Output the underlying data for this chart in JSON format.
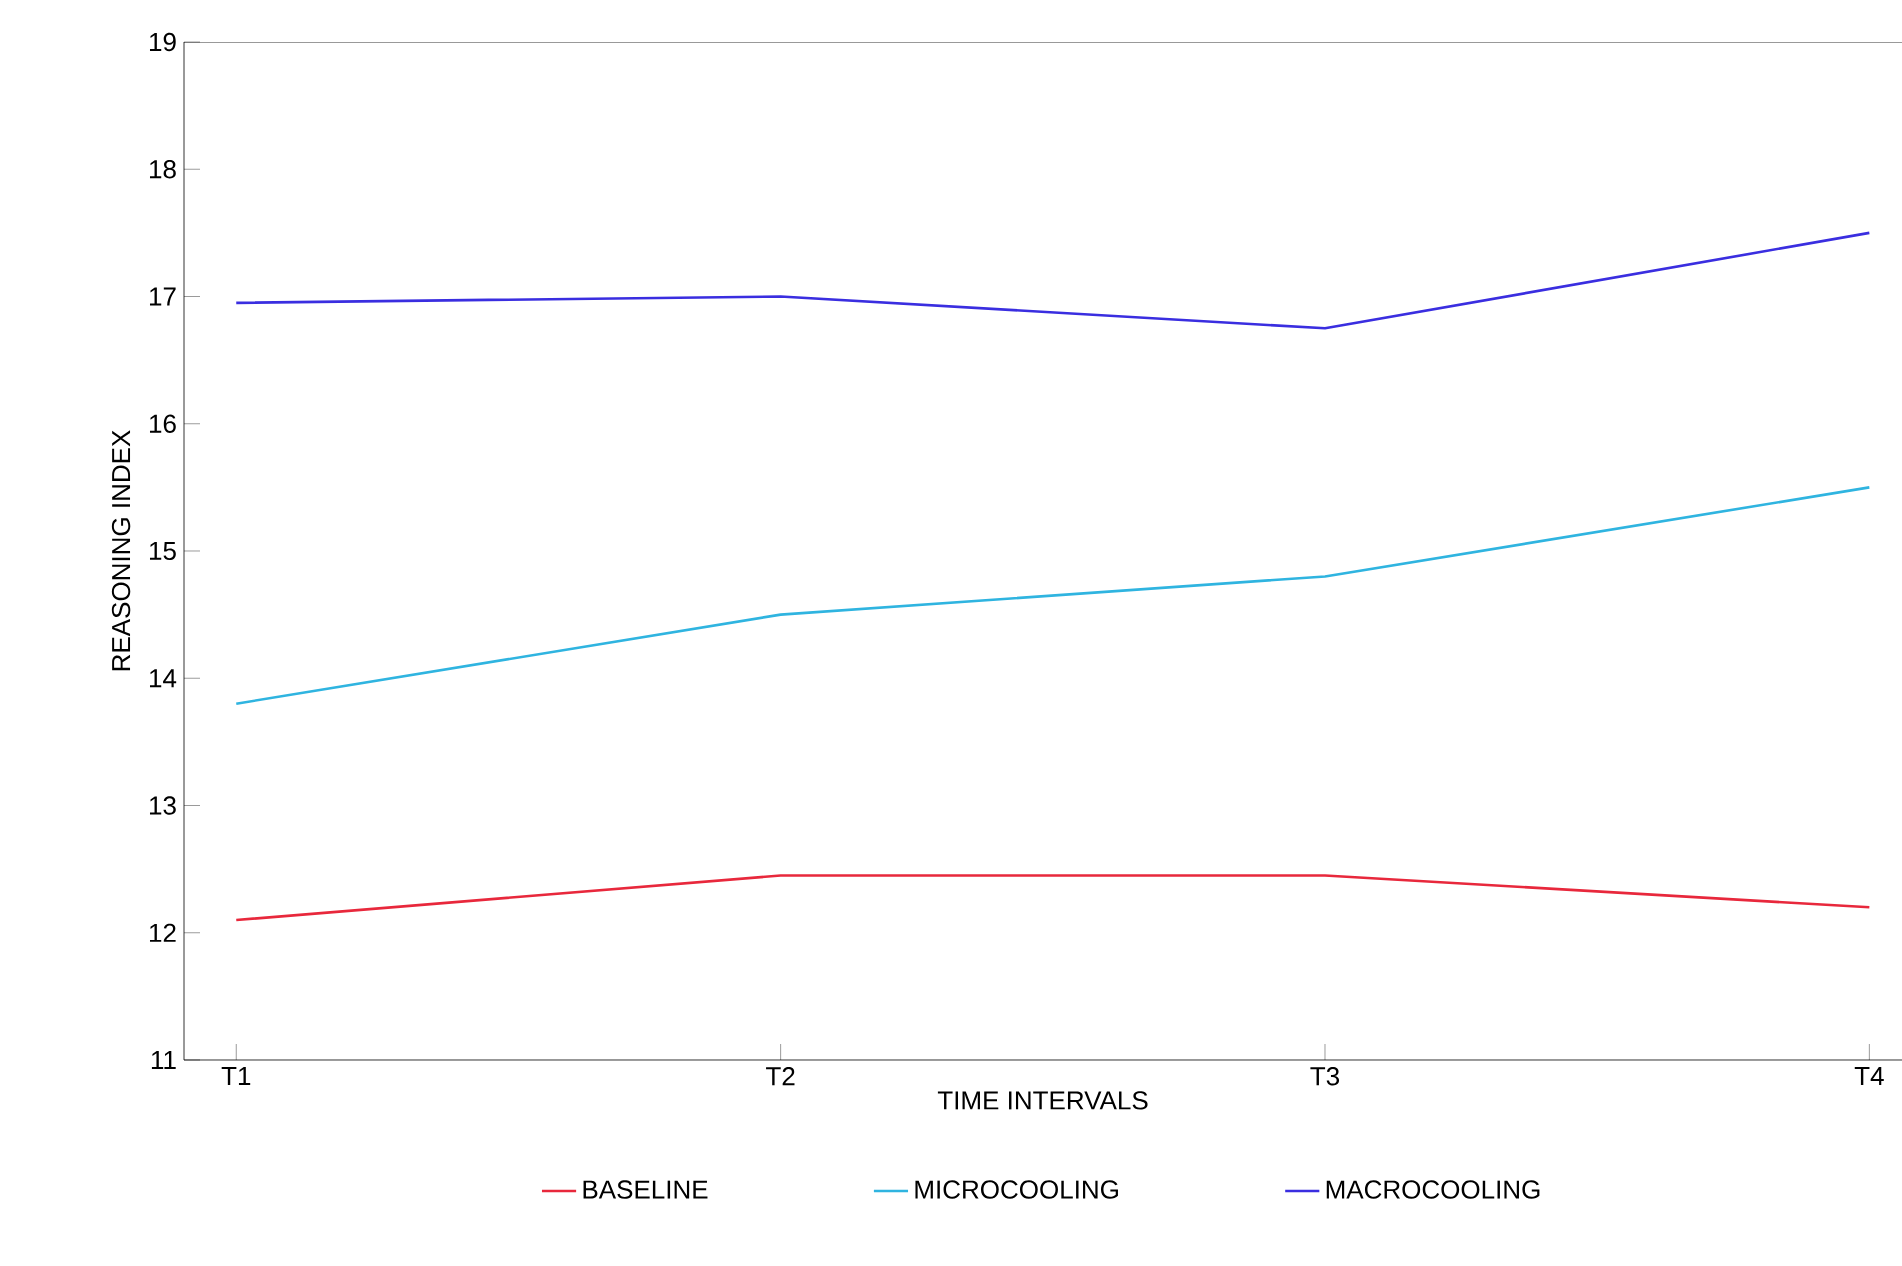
{
  "chart_data": {
    "type": "line",
    "xlabel": "TIME INTERVALS",
    "ylabel": "REASONING INDEX",
    "categories": [
      "T1",
      "T2",
      "T3",
      "T4"
    ],
    "series": [
      {
        "name": "BASELINE",
        "color": "#e8283c",
        "values": [
          12.1,
          12.45,
          12.45,
          12.2
        ]
      },
      {
        "name": "MICROCOOLING",
        "color": "#2fb4e0",
        "values": [
          13.8,
          14.5,
          14.8,
          15.5
        ]
      },
      {
        "name": "MACROCOOLING",
        "color": "#3a2ee0",
        "values": [
          16.95,
          17.0,
          16.75,
          17.5
        ]
      }
    ],
    "ylim": [
      11,
      19
    ],
    "yticks": [
      11,
      12,
      13,
      14,
      15,
      16,
      17,
      18,
      19
    ],
    "grid": false,
    "legend": "bottom",
    "marker": "none",
    "line_style": "solid"
  }
}
